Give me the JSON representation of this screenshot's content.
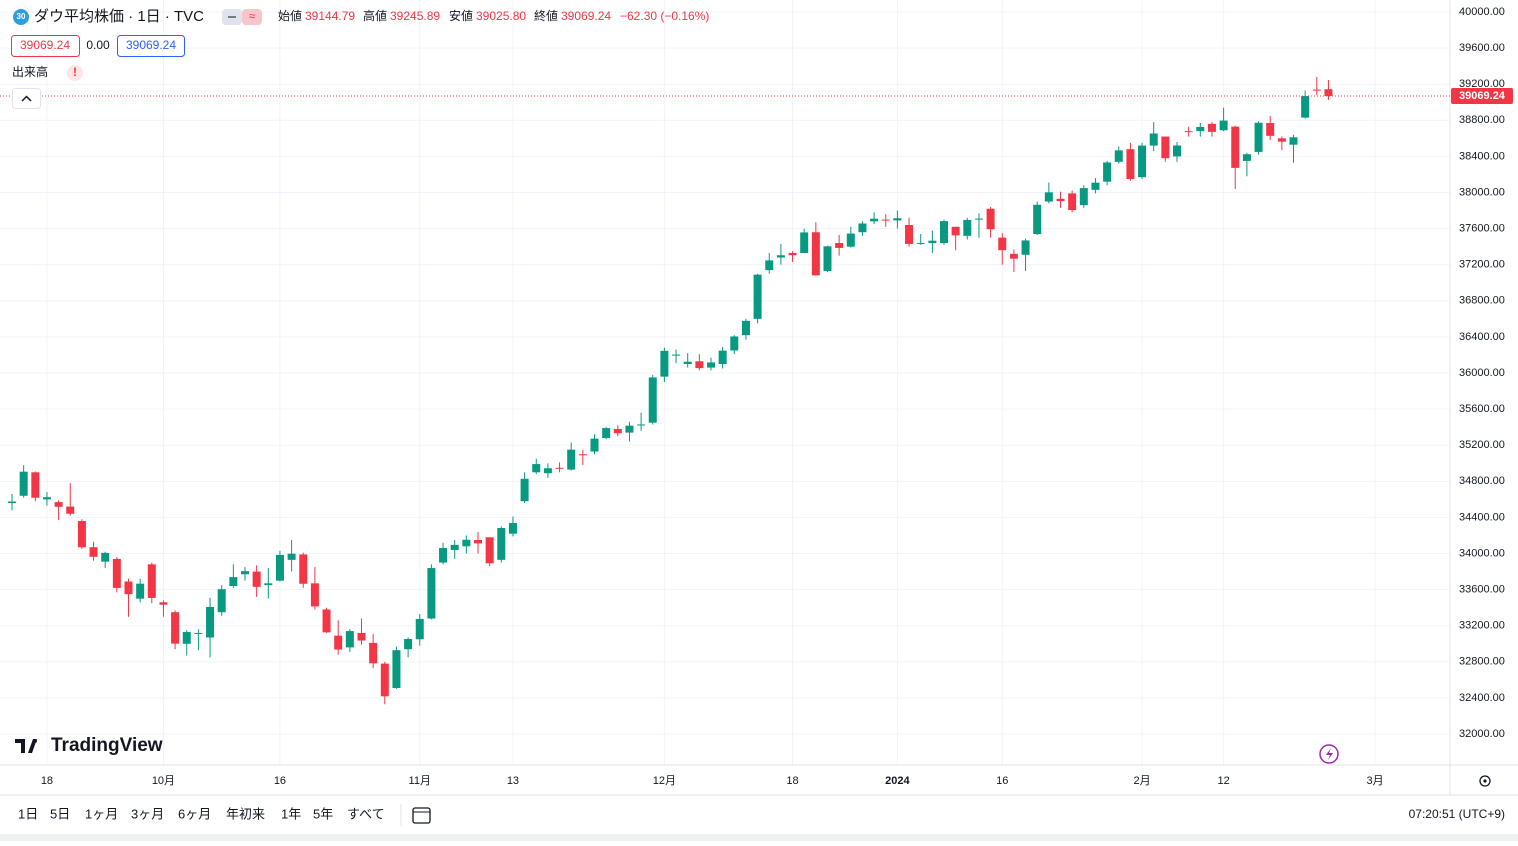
{
  "header": {
    "symbol_badge": "30",
    "title": "ダウ平均株価 · 1日 · TVC",
    "open_label": "始値",
    "open": "39144.79",
    "high_label": "高値",
    "high": "39245.89",
    "low_label": "安値",
    "low": "39025.80",
    "close_label": "終値",
    "close": "39069.24",
    "change": "−62.30 (−0.16%)"
  },
  "indicators": {
    "price_box": "39069.24",
    "change_box": "0.00",
    "value_box": "39069.24",
    "volume": "出来高",
    "warning": "!"
  },
  "logo": "TradingView",
  "toolbar": {
    "ranges": [
      "1日",
      "5日",
      "1ヶ月",
      "3ヶ月",
      "6ヶ月",
      "年初来",
      "1年",
      "5年",
      "すべて"
    ],
    "time": "07:20:51 (UTC+9)"
  },
  "chart_data": {
    "type": "candlestick",
    "up_color": "#089981",
    "down_color": "#f23645",
    "grid": true,
    "last_price_label": "39069.24",
    "categories": [
      null,
      null,
      null,
      "18",
      null,
      null,
      null,
      null,
      null,
      null,
      null,
      null,
      null,
      "10月",
      null,
      null,
      null,
      null,
      null,
      null,
      null,
      null,
      null,
      "16",
      null,
      null,
      null,
      null,
      null,
      null,
      null,
      null,
      null,
      null,
      null,
      "11月",
      null,
      null,
      null,
      null,
      null,
      null,
      null,
      "13",
      null,
      null,
      null,
      null,
      null,
      null,
      null,
      null,
      null,
      null,
      null,
      null,
      "12月",
      null,
      null,
      null,
      null,
      null,
      null,
      null,
      null,
      null,
      null,
      "18",
      null,
      null,
      null,
      null,
      null,
      null,
      null,
      null,
      "2024",
      null,
      null,
      null,
      null,
      null,
      null,
      null,
      null,
      "16",
      null,
      null,
      null,
      null,
      null,
      null,
      null,
      null,
      null,
      null,
      null,
      "2月",
      null,
      null,
      null,
      null,
      null,
      null,
      "12",
      null,
      null,
      null,
      null,
      null,
      null,
      null,
      null,
      null,
      null,
      null,
      null,
      "3月"
    ],
    "open": [
      34560,
      34640,
      34900,
      34600,
      34570,
      34520,
      34360,
      34070,
      33910,
      33940,
      33690,
      33500,
      33880,
      33460,
      33350,
      33000,
      33120,
      33070,
      33350,
      33640,
      33770,
      33800,
      33650,
      33700,
      33930,
      33990,
      33670,
      33380,
      33090,
      32960,
      33120,
      33010,
      32780,
      32510,
      32940,
      33050,
      33280,
      33900,
      34040,
      34080,
      34150,
      34180,
      33930,
      34220,
      34580,
      34900,
      34890,
      34950,
      34930,
      35100,
      35130,
      35280,
      35380,
      35340,
      35430,
      35450,
      35960,
      36200,
      36100,
      36130,
      36060,
      36100,
      36250,
      36420,
      36600,
      37140,
      37280,
      37330,
      37330,
      37560,
      37130,
      37440,
      37400,
      37560,
      37680,
      37700,
      37690,
      37640,
      37440,
      37440,
      37440,
      37620,
      37520,
      37710,
      37820,
      37500,
      37320,
      37310,
      37540,
      37900,
      37930,
      37990,
      37860,
      38030,
      38120,
      38340,
      38480,
      38170,
      38520,
      38620,
      38400,
      38680,
      38680,
      38760,
      38690,
      38730,
      38350,
      38450,
      38770,
      38600,
      38530,
      38830,
      39140,
      39144.79,
      null,
      null,
      null,
      null
    ],
    "high": [
      34660,
      34980,
      34910,
      34680,
      34590,
      34780,
      34380,
      34130,
      34020,
      33960,
      33720,
      33720,
      33900,
      33480,
      33370,
      33150,
      33160,
      33510,
      33650,
      33880,
      33850,
      33870,
      33840,
      34030,
      34150,
      34010,
      33850,
      33400,
      33260,
      33160,
      33280,
      33110,
      32800,
      32970,
      33070,
      33330,
      33880,
      34120,
      34150,
      34200,
      34240,
      34180,
      34300,
      34410,
      34900,
      35050,
      35000,
      35010,
      35230,
      35150,
      35320,
      35400,
      35420,
      35460,
      35560,
      35980,
      36280,
      36260,
      36220,
      36210,
      36170,
      36290,
      36420,
      36600,
      37100,
      37330,
      37430,
      37350,
      37600,
      37670,
      37410,
      37530,
      37620,
      37680,
      37780,
      37760,
      37800,
      37720,
      37540,
      37580,
      37700,
      37620,
      37720,
      37770,
      37840,
      37550,
      37370,
      37490,
      37900,
      38110,
      38010,
      38020,
      38080,
      38160,
      38350,
      38510,
      38550,
      38550,
      38780,
      38620,
      38560,
      38730,
      38770,
      38780,
      38940,
      38740,
      38440,
      38790,
      38850,
      38620,
      38640,
      39130,
      39280,
      39245.89,
      null,
      null,
      null,
      null
    ],
    "low": [
      34480,
      34620,
      34580,
      34530,
      34370,
      34420,
      34050,
      33920,
      33840,
      33570,
      33300,
      33460,
      33450,
      33300,
      32940,
      32870,
      32930,
      32850,
      33310,
      33620,
      33700,
      33520,
      33500,
      33690,
      33800,
      33620,
      33380,
      33120,
      32880,
      32910,
      32990,
      32730,
      32330,
      32500,
      32850,
      32980,
      33270,
      33880,
      33940,
      34000,
      34000,
      33860,
      33900,
      34190,
      34560,
      34880,
      34840,
      34900,
      34920,
      34980,
      35100,
      35270,
      35300,
      35240,
      35360,
      35430,
      35900,
      36110,
      36060,
      36030,
      36030,
      36050,
      36210,
      36370,
      36550,
      37100,
      37200,
      37230,
      37330,
      37080,
      37120,
      37300,
      37390,
      37520,
      37650,
      37620,
      37600,
      37400,
      37420,
      37330,
      37420,
      37360,
      37480,
      37500,
      37500,
      37200,
      37120,
      37130,
      37530,
      37880,
      37830,
      37780,
      37830,
      37990,
      38080,
      38320,
      38130,
      38150,
      38460,
      38340,
      38340,
      38620,
      38620,
      38620,
      38680,
      38040,
      38180,
      38420,
      38580,
      38470,
      38330,
      38820,
      39080,
      39025.8,
      null,
      null,
      null,
      null
    ],
    "close": [
      34576,
      34907,
      34618,
      34624,
      34518,
      34441,
      34070,
      33964,
      34007,
      33619,
      33550,
      33666,
      33508,
      33433,
      33002,
      33130,
      33120,
      33408,
      33605,
      33739,
      33805,
      33631,
      33670,
      33985,
      33998,
      33665,
      33414,
      33127,
      32936,
      33141,
      33036,
      32784,
      32418,
      32929,
      33053,
      33275,
      33839,
      34061,
      34096,
      34153,
      34112,
      33892,
      34283,
      34338,
      34828,
      34991,
      34945,
      34947,
      35151,
      35088,
      35273,
      35390,
      35333,
      35417,
      35430,
      35951,
      36246,
      36204,
      36125,
      36054,
      36117,
      36248,
      36405,
      36578,
      37090,
      37248,
      37305,
      37306,
      37558,
      37082,
      37404,
      37386,
      37545,
      37657,
      37710,
      37690,
      37715,
      37430,
      37440,
      37466,
      37683,
      37525,
      37696,
      37711,
      37593,
      37361,
      37267,
      37469,
      37864,
      38002,
      37905,
      37806,
      38049,
      38109,
      38333,
      38467,
      38150,
      38520,
      38654,
      38380,
      38521,
      38677,
      38726,
      38672,
      38797,
      38273,
      38424,
      38773,
      38628,
      38564,
      38612,
      39069,
      39132,
      39069.24,
      null,
      null,
      null,
      null
    ],
    "ylim": [
      31657,
      40133
    ],
    "yticks": [
      {
        "value": 32000,
        "label": "32000.00"
      },
      {
        "value": 32400,
        "label": "32400.00"
      },
      {
        "value": 32800,
        "label": "32800.00"
      },
      {
        "value": 33200,
        "label": "33200.00"
      },
      {
        "value": 33600,
        "label": "33600.00"
      },
      {
        "value": 34000,
        "label": "34000.00"
      },
      {
        "value": 34400,
        "label": "34400.00"
      },
      {
        "value": 34800,
        "label": "34800.00"
      },
      {
        "value": 35200,
        "label": "35200.00"
      },
      {
        "value": 35600,
        "label": "35600.00"
      },
      {
        "value": 36000,
        "label": "36000.00"
      },
      {
        "value": 36400,
        "label": "36400.00"
      },
      {
        "value": 36800,
        "label": "36800.00"
      },
      {
        "value": 37200,
        "label": "37200.00"
      },
      {
        "value": 37600,
        "label": "37600.00"
      },
      {
        "value": 38000,
        "label": "38000.00"
      },
      {
        "value": 38400,
        "label": "38400.00"
      },
      {
        "value": 38800,
        "label": "38800.00"
      },
      {
        "value": 39200,
        "label": "39200.00"
      },
      {
        "value": 39600,
        "label": "39600.00"
      },
      {
        "value": 40000,
        "label": "40000.00"
      }
    ]
  }
}
